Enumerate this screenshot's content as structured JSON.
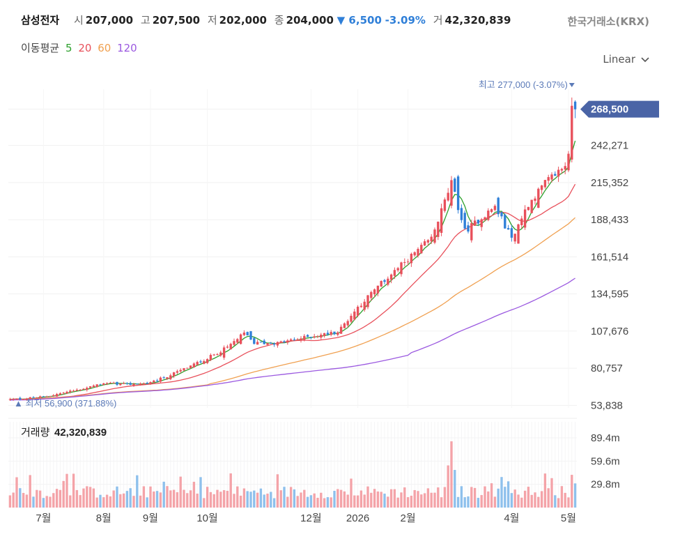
{
  "header": {
    "stock_name": "삼성전자",
    "open_label": "시",
    "open": "207,000",
    "high_label": "고",
    "high": "207,500",
    "low_label": "저",
    "low": "202,000",
    "close_label": "종",
    "close": "204,000",
    "change": "▼ 6,500",
    "change_pct": "-3.09%",
    "volume_label": "거",
    "volume": "42,320,839"
  },
  "exchange": "한국거래소(KRX)",
  "ma_legend": {
    "label": "이동평균",
    "items": [
      {
        "label": "5",
        "color": "#2ca02c"
      },
      {
        "label": "20",
        "color": "#e8505b"
      },
      {
        "label": "60",
        "color": "#f0a050"
      },
      {
        "label": "120",
        "color": "#9b59e0"
      }
    ]
  },
  "scale_select": {
    "value": "Linear"
  },
  "chart_data": {
    "type": "candlestick",
    "up_color": "#e8505b",
    "down_color": "#2f7fd8",
    "y_ticks": [
      "268,500",
      "242,271",
      "215,352",
      "188,433",
      "161,514",
      "134,595",
      "107,676",
      "80,757",
      "53,838"
    ],
    "y_tick_values": [
      268500,
      242271,
      215352,
      188433,
      161514,
      134595,
      107676,
      80757,
      53838
    ],
    "ylim": [
      52000,
      283000
    ],
    "current_price_label": "268,500",
    "max_annotation": "최고 277,000 (-3.07%)",
    "min_annotation": "▲ 최저 56,900 (371.88%)",
    "x_ticks": [
      "7월",
      "8월",
      "9월",
      "10월",
      "12월",
      "2026",
      "2월",
      "4월",
      "5월"
    ],
    "x_tick_index": [
      10,
      28,
      42,
      59,
      90,
      104,
      119,
      150,
      167
    ],
    "anchors": [
      [
        0,
        58000
      ],
      [
        10,
        60000
      ],
      [
        20,
        65000
      ],
      [
        28,
        70000
      ],
      [
        35,
        69000
      ],
      [
        42,
        70000
      ],
      [
        50,
        78000
      ],
      [
        59,
        88000
      ],
      [
        65,
        96000
      ],
      [
        70,
        106000
      ],
      [
        73,
        99000
      ],
      [
        80,
        99000
      ],
      [
        90,
        104000
      ],
      [
        98,
        107000
      ],
      [
        104,
        125000
      ],
      [
        110,
        140000
      ],
      [
        119,
        160000
      ],
      [
        126,
        175000
      ],
      [
        132,
        215000
      ],
      [
        136,
        180000
      ],
      [
        140,
        188000
      ],
      [
        145,
        198000
      ],
      [
        150,
        175000
      ],
      [
        155,
        200000
      ],
      [
        160,
        215000
      ],
      [
        166,
        228000
      ],
      [
        168,
        248000
      ],
      [
        169,
        262000
      ]
    ],
    "max_index": 168,
    "min_index": 0,
    "volume": {
      "title": "거래량",
      "value": "42,320,839",
      "y_ticks": [
        "89.4m",
        "59.6m",
        "29.8m"
      ],
      "y_tick_values": [
        89.4,
        59.6,
        29.8
      ],
      "ylim": [
        0,
        110
      ]
    },
    "ma_periods": [
      5,
      20,
      60,
      120
    ]
  }
}
